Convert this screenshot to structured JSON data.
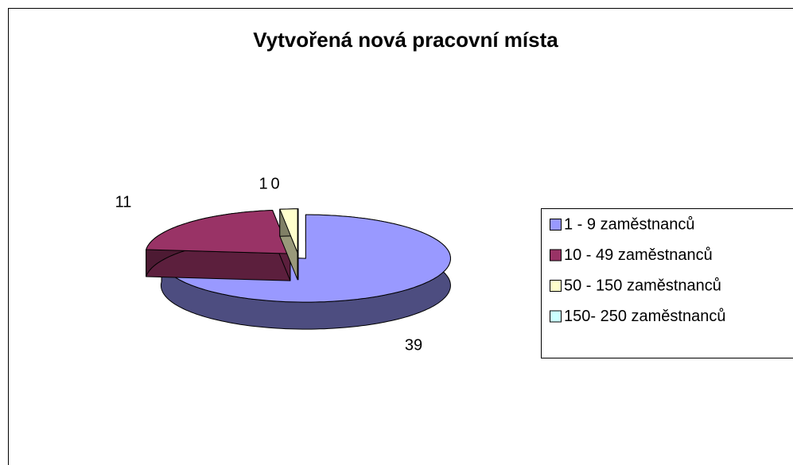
{
  "chart_data": {
    "type": "pie",
    "title": "Vytvořená nová pracovní místa",
    "categories": [
      "1 - 9 zaměstnanců",
      "10 - 49 zaměstnanců",
      "50 - 150 zaměstnanců",
      "150- 250 zaměstnanců"
    ],
    "values": [
      39,
      11,
      1,
      0
    ],
    "colors": [
      "#9999ff",
      "#993366",
      "#ffffcc",
      "#ccffff"
    ],
    "legend": "right"
  }
}
